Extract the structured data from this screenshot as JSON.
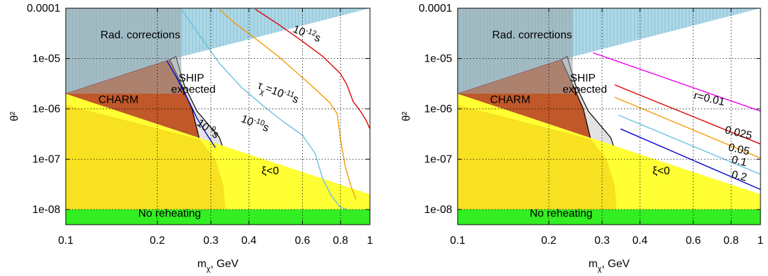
{
  "colors": {
    "rad": "#add8e6",
    "charm": "#c0582a",
    "ship": "#e3e3e3",
    "xi": "#ffff33",
    "yellow_dark": "#f0c810",
    "reheat": "#33ee22",
    "grid": "#000000"
  },
  "chart_data": [
    {
      "type": "area",
      "xlabel": "m_χ, GeV",
      "ylabel": "θ²",
      "xscale": "log",
      "yscale": "log",
      "xlim": [
        0.1,
        1
      ],
      "ylim": [
        5e-09,
        0.0001
      ],
      "grid": true,
      "x_ticks": [
        {
          "v": 0.1,
          "label": "0.1"
        },
        {
          "v": 0.2,
          "label": "0.2"
        },
        {
          "v": 0.3,
          "label": "0.3"
        },
        {
          "v": 0.4,
          "label": "0.4"
        },
        {
          "v": 0.6,
          "label": "0.6"
        },
        {
          "v": 0.8,
          "label": "0.8"
        },
        {
          "v": 1,
          "label": "1"
        }
      ],
      "y_ticks": [
        {
          "v": 1e-08,
          "label": "1e-08"
        },
        {
          "v": 1e-07,
          "label": "1e-07"
        },
        {
          "v": 1e-06,
          "label": "1e-06"
        },
        {
          "v": 1e-05,
          "label": "1e-05"
        },
        {
          "v": 0.0001,
          "label": "0.0001"
        }
      ],
      "regions": [
        {
          "label": "Rad. corrections",
          "points": [
            [
              0.1,
              0.0001
            ],
            [
              1,
              0.0001
            ],
            [
              0.22,
              9.5e-06
            ],
            [
              0.1,
              2e-06
            ]
          ]
        },
        {
          "label": "CHARM",
          "points": [
            [
              0.1,
              2e-06
            ],
            [
              0.22,
              9.5e-06
            ],
            [
              0.235,
              4e-06
            ],
            [
              0.26,
              1e-06
            ],
            [
              0.275,
              2.5e-07
            ]
          ]
        },
        {
          "label": "SHIP expected",
          "points": [
            [
              0.22,
              9.5e-06
            ],
            [
              0.23,
              1.1e-05
            ],
            [
              0.245,
              3e-06
            ],
            [
              0.27,
              9e-07
            ],
            [
              0.32,
              2.7e-07
            ],
            [
              0.335,
              1.2e-07
            ],
            [
              0.275,
              2.5e-07
            ],
            [
              0.26,
              1e-06
            ],
            [
              0.235,
              4e-06
            ]
          ]
        },
        {
          "label": "ξ<0",
          "points": [
            [
              0.1,
              2e-06
            ],
            [
              1,
              2e-08
            ],
            [
              1,
              1e-08
            ],
            [
              0.1,
              1e-08
            ]
          ]
        },
        {
          "label": "No reheating",
          "points": [
            [
              0.1,
              1e-08
            ],
            [
              1,
              1e-08
            ],
            [
              1,
              5e-09
            ],
            [
              0.1,
              5e-09
            ]
          ]
        }
      ],
      "series": [
        {
          "name": "10^{-9}s",
          "color": "#0000cc",
          "x": [
            0.215,
            0.23,
            0.25,
            0.27,
            0.29,
            0.31
          ],
          "y": [
            9e-06,
            4.5e-06,
            1.7e-06,
            6.5e-07,
            3.2e-07,
            1.7e-07
          ]
        },
        {
          "name": "10^{-10}s",
          "color": "#66c0e0",
          "x": [
            0.24,
            0.28,
            0.32,
            0.38,
            0.45,
            0.52,
            0.6,
            0.66,
            0.7,
            0.75,
            0.8,
            0.84
          ],
          "y": [
            9.5e-05,
            2.5e-05,
            8e-06,
            2.6e-06,
            1.1e-06,
            5.5e-07,
            3e-07,
            1.3e-07,
            4e-08,
            1.8e-08,
            1.1e-08,
            1e-08
          ]
        },
        {
          "name": "τ_χ=10^{-11}s",
          "color": "#f59a00",
          "x": [
            0.32,
            0.36,
            0.42,
            0.5,
            0.58,
            0.66,
            0.74,
            0.78,
            0.8,
            0.83,
            0.87,
            0.9
          ],
          "y": [
            9.5e-05,
            5e-05,
            2.5e-05,
            1.1e-05,
            5e-06,
            2.5e-06,
            1.3e-06,
            8e-07,
            2.5e-07,
            7e-08,
            2.7e-08,
            1.6e-08
          ]
        },
        {
          "name": "10^{-12}s",
          "color": "#e00000",
          "x": [
            0.42,
            0.5,
            0.6,
            0.7,
            0.8,
            0.84,
            0.88,
            0.93,
            0.97,
            1
          ],
          "y": [
            9.5e-05,
            4.8e-05,
            2.2e-05,
            1.1e-05,
            5e-06,
            3e-06,
            1.4e-06,
            9e-07,
            6e-07,
            4e-07
          ]
        }
      ],
      "annotations": [
        {
          "text": "Rad. corrections",
          "x": 0.13,
          "y": 2.5e-05
        },
        {
          "text": "CHARM",
          "x": 0.128,
          "y": 1.3e-06
        },
        {
          "text": "SHIP",
          "x": 0.235,
          "y": 3.5e-06
        },
        {
          "text": "expected",
          "x": 0.222,
          "y": 2.1e-06
        },
        {
          "text": "ξ<0",
          "x": 0.44,
          "y": 5e-08
        },
        {
          "text": "No reheating",
          "x": 0.173,
          "y": 7.2e-09
        },
        {
          "text": "10^{-12}s",
          "x": 0.555,
          "y": 3.4e-05,
          "rotate": 21
        },
        {
          "text": "τ_χ=10^{-11}s",
          "x": 0.425,
          "y": 2.6e-06,
          "rotate": 21
        },
        {
          "text": "10^{-10}s",
          "x": 0.375,
          "y": 5.6e-07,
          "rotate": 21
        },
        {
          "text": "10^{-9}s",
          "x": 0.268,
          "y": 4.9e-07,
          "rotate": 36
        }
      ]
    },
    {
      "type": "area",
      "xlabel": "m_χ, GeV",
      "ylabel": "θ²",
      "xscale": "log",
      "yscale": "log",
      "xlim": [
        0.1,
        1
      ],
      "ylim": [
        5e-09,
        0.0001
      ],
      "grid": true,
      "x_ticks": [
        {
          "v": 0.1,
          "label": "0.1"
        },
        {
          "v": 0.2,
          "label": "0.2"
        },
        {
          "v": 0.3,
          "label": "0.3"
        },
        {
          "v": 0.4,
          "label": "0.4"
        },
        {
          "v": 0.6,
          "label": "0.6"
        },
        {
          "v": 0.8,
          "label": "0.8"
        },
        {
          "v": 1,
          "label": "1"
        }
      ],
      "y_ticks": [
        {
          "v": 1e-08,
          "label": "1e-08"
        },
        {
          "v": 1e-07,
          "label": "1e-07"
        },
        {
          "v": 1e-06,
          "label": "1e-06"
        },
        {
          "v": 1e-05,
          "label": "1e-05"
        },
        {
          "v": 0.0001,
          "label": "0.0001"
        }
      ],
      "regions": [
        {
          "label": "Rad. corrections",
          "points": [
            [
              0.1,
              0.0001
            ],
            [
              1,
              0.0001
            ],
            [
              0.22,
              9.5e-06
            ],
            [
              0.1,
              2e-06
            ]
          ]
        },
        {
          "label": "CHARM",
          "points": [
            [
              0.1,
              2e-06
            ],
            [
              0.22,
              9.5e-06
            ],
            [
              0.235,
              4e-06
            ],
            [
              0.26,
              1e-06
            ],
            [
              0.275,
              2.5e-07
            ]
          ]
        },
        {
          "label": "SHIP expected",
          "points": [
            [
              0.22,
              9.5e-06
            ],
            [
              0.23,
              1.1e-05
            ],
            [
              0.245,
              3e-06
            ],
            [
              0.27,
              9e-07
            ],
            [
              0.32,
              2.7e-07
            ],
            [
              0.335,
              1.2e-07
            ],
            [
              0.275,
              2.5e-07
            ],
            [
              0.26,
              1e-06
            ],
            [
              0.235,
              4e-06
            ]
          ]
        },
        {
          "label": "ξ<0",
          "points": [
            [
              0.1,
              2e-06
            ],
            [
              1,
              2e-08
            ],
            [
              1,
              1e-08
            ],
            [
              0.1,
              1e-08
            ]
          ]
        },
        {
          "label": "No reheating",
          "points": [
            [
              0.1,
              1e-08
            ],
            [
              1,
              1e-08
            ],
            [
              1,
              5e-09
            ],
            [
              0.1,
              5e-09
            ]
          ]
        }
      ],
      "series": [
        {
          "name": "r=0.01",
          "color": "#ee00ee",
          "x": [
            0.28,
            1
          ],
          "y": [
            1.3e-05,
            9e-07
          ]
        },
        {
          "name": "0.025",
          "color": "#e00000",
          "x": [
            0.33,
            1
          ],
          "y": [
            3e-06,
            2e-07
          ]
        },
        {
          "name": "0.05",
          "color": "#f59a00",
          "x": [
            0.33,
            1
          ],
          "y": [
            1.7e-06,
            1.05e-07
          ]
        },
        {
          "name": "0.1",
          "color": "#66c0e0",
          "x": [
            0.34,
            1
          ],
          "y": [
            7.5e-07,
            5e-08
          ]
        },
        {
          "name": "0.2",
          "color": "#0000cc",
          "x": [
            0.345,
            1
          ],
          "y": [
            4e-07,
            2.5e-08
          ]
        }
      ],
      "annotations": [
        {
          "text": "Rad. corrections",
          "x": 0.13,
          "y": 2.5e-05
        },
        {
          "text": "CHARM",
          "x": 0.128,
          "y": 1.3e-06
        },
        {
          "text": "SHIP",
          "x": 0.235,
          "y": 3.5e-06
        },
        {
          "text": "expected",
          "x": 0.222,
          "y": 2.1e-06
        },
        {
          "text": "ξ<0",
          "x": 0.44,
          "y": 5e-08
        },
        {
          "text": "No reheating",
          "x": 0.173,
          "y": 7.2e-09
        },
        {
          "text": "r=0.01",
          "x": 0.6,
          "y": 1.6e-06,
          "rotate": 13
        },
        {
          "text": "0.025",
          "x": 0.76,
          "y": 3.3e-07,
          "rotate": 13
        },
        {
          "text": "0.05",
          "x": 0.78,
          "y": 1.5e-07,
          "rotate": 13
        },
        {
          "text": "0.1",
          "x": 0.8,
          "y": 8.5e-08,
          "rotate": 13
        },
        {
          "text": "0.2",
          "x": 0.8,
          "y": 4.3e-08,
          "rotate": 13
        }
      ]
    }
  ]
}
